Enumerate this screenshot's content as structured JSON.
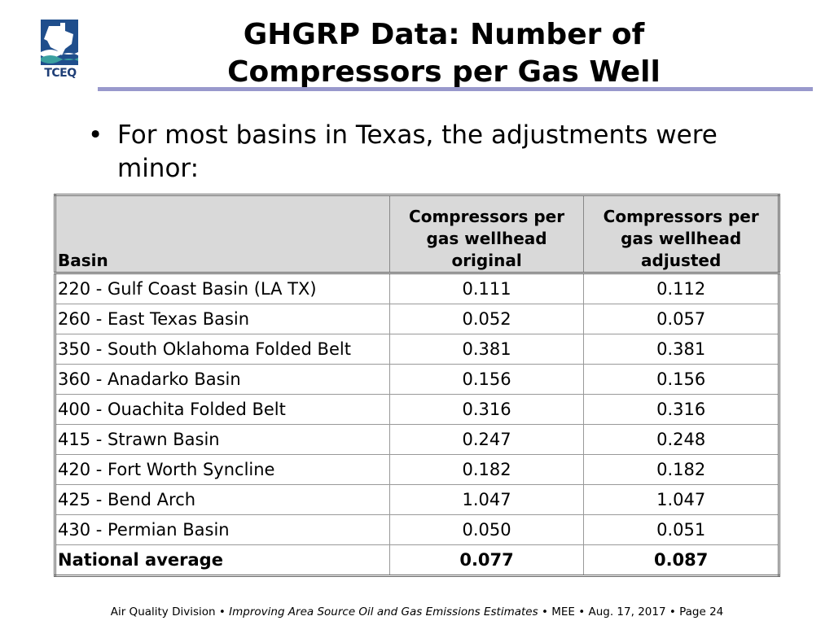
{
  "logo": {
    "text": "TCEQ"
  },
  "title": {
    "line1": "GHGRP Data: Number of",
    "line2": "Compressors per Gas Well"
  },
  "bullet": {
    "symbol": "•",
    "text": "For most basins in Texas, the adjustments were minor:"
  },
  "table": {
    "headers": {
      "basin": "Basin",
      "original": "Compressors per gas wellhead original",
      "adjusted": "Compressors per gas wellhead adjusted"
    },
    "rows": [
      {
        "basin": "220 - Gulf Coast Basin (LA  TX)",
        "original": "0.111",
        "adjusted": "0.112"
      },
      {
        "basin": "260 - East Texas Basin",
        "original": "0.052",
        "adjusted": "0.057"
      },
      {
        "basin": "350 - South Oklahoma Folded Belt",
        "original": "0.381",
        "adjusted": "0.381"
      },
      {
        "basin": "360 - Anadarko Basin",
        "original": "0.156",
        "adjusted": "0.156"
      },
      {
        "basin": "400 - Ouachita Folded Belt",
        "original": "0.316",
        "adjusted": "0.316"
      },
      {
        "basin": "415 - Strawn Basin",
        "original": "0.247",
        "adjusted": "0.248"
      },
      {
        "basin": "420 - Fort Worth Syncline",
        "original": "0.182",
        "adjusted": "0.182"
      },
      {
        "basin": "425 - Bend Arch",
        "original": "1.047",
        "adjusted": "1.047"
      },
      {
        "basin": "430 - Permian Basin",
        "original": "0.050",
        "adjusted": "0.051"
      }
    ],
    "total": {
      "basin": "National average",
      "original": "0.077",
      "adjusted": "0.087"
    }
  },
  "footer": {
    "division": "Air Quality Division",
    "sep": "•",
    "project": "Improving Area Source Oil and Gas Emissions Estimates",
    "event": "MEE",
    "date": "Aug. 17, 2017",
    "page": "Page 24"
  },
  "colors": {
    "title_rule": "#9999cc",
    "header_bg": "#d9d9d9",
    "logo_blue": "#1f4e8c"
  }
}
